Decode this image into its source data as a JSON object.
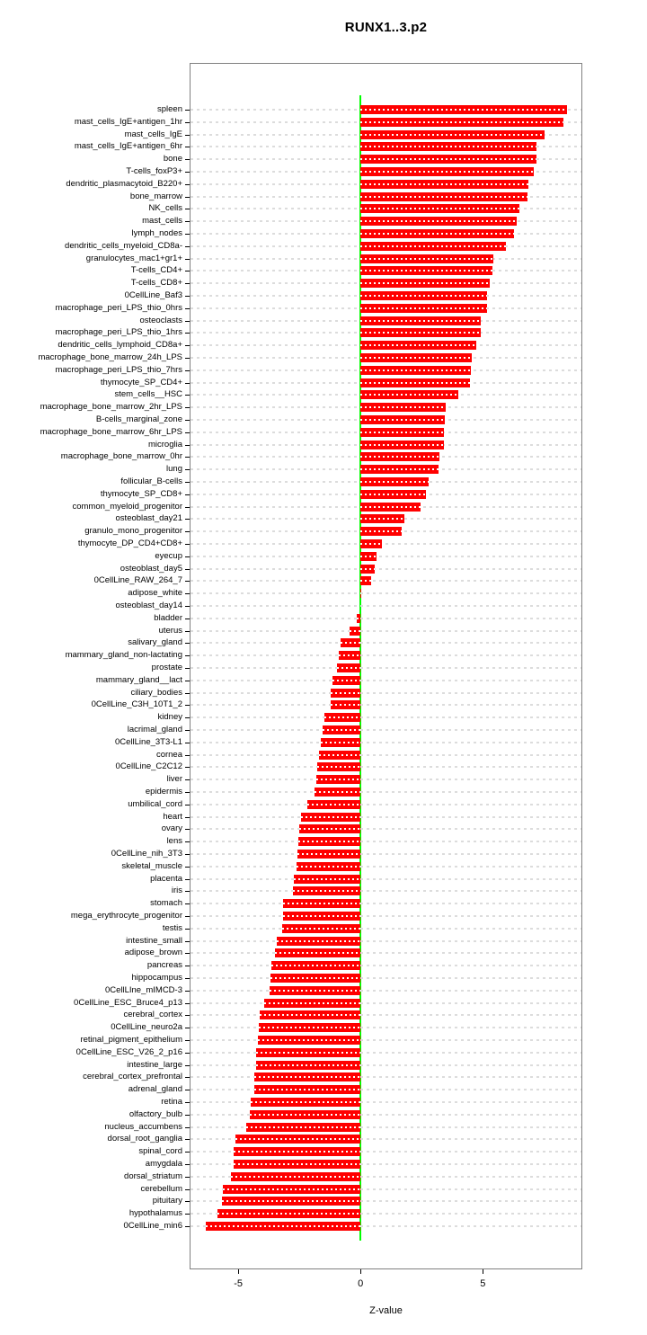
{
  "page": {
    "title": "RUNX1..3.p2"
  },
  "chart_data": {
    "type": "bar",
    "orientation": "horizontal",
    "title": "RUNX1..3.p2",
    "xlabel": "Z-value",
    "ylabel": "",
    "xlim": [
      -6.95,
      9.03
    ],
    "xticks": [
      -5,
      0,
      5
    ],
    "grid": "dashed light-gray horizontal guide per row, full plot width",
    "zero_line": true,
    "legend": "none",
    "bar_color": "#ff0000",
    "bar_dash_color": "#ffffff",
    "zero_line_color": "#00ff00",
    "grid_color": "#dcdcdc",
    "box_color": "#808080",
    "categories": [
      "spleen",
      "mast_cells_IgE+antigen_1hr",
      "mast_cells_IgE",
      "mast_cells_IgE+antigen_6hr",
      "bone",
      "T-cells_foxP3+",
      "dendritic_plasmacytoid_B220+",
      "bone_marrow",
      "NK_cells",
      "mast_cells",
      "lymph_nodes",
      "dendritic_cells_myeloid_CD8a-",
      "granulocytes_mac1+gr1+",
      "T-cells_CD4+",
      "T-cells_CD8+",
      "0CellLine_Baf3",
      "macrophage_peri_LPS_thio_0hrs",
      "osteoclasts",
      "macrophage_peri_LPS_thio_1hrs",
      "dendritic_cells_lymphoid_CD8a+",
      "macrophage_bone_marrow_24h_LPS",
      "macrophage_peri_LPS_thio_7hrs",
      "thymocyte_SP_CD4+",
      "stem_cells__HSC",
      "macrophage_bone_marrow_2hr_LPS",
      "B-cells_marginal_zone",
      "macrophage_bone_marrow_6hr_LPS",
      "microglia",
      "macrophage_bone_marrow_0hr",
      "lung",
      "follicular_B-cells",
      "thymocyte_SP_CD8+",
      "common_myeloid_progenitor",
      "osteoblast_day21",
      "granulo_mono_progenitor",
      "thymocyte_DP_CD4+CD8+",
      "eyecup",
      "osteoblast_day5",
      "0CellLine_RAW_264_7",
      "adipose_white",
      "osteoblast_day14",
      "bladder",
      "uterus",
      "salivary_gland",
      "mammary_gland_non-lactating",
      "prostate",
      "mammary_gland__lact",
      "ciliary_bodies",
      "0CellLine_C3H_10T1_2",
      "kidney",
      "lacrimal_gland",
      "0CellLine_3T3-L1",
      "cornea",
      "0CellLine_C2C12",
      "liver",
      "epidermis",
      "umbilical_cord",
      "heart",
      "ovary",
      "lens",
      "0CellLine_nih_3T3",
      "skeletal_muscle",
      "placenta",
      "iris",
      "stomach",
      "mega_erythrocyte_progenitor",
      "testis",
      "intestine_small",
      "adipose_brown",
      "pancreas",
      "hippocampus",
      "0CellLIne_mIMCD-3",
      "0CellLine_ESC_Bruce4_p13",
      "cerebral_cortex",
      "0CellLine_neuro2a",
      "retinal_pigment_epithelium",
      "0CellLine_ESC_V26_2_p16",
      "intestine_large",
      "cerebral_cortex_prefrontal",
      "adrenal_gland",
      "retina",
      "olfactory_bulb",
      "nucleus_accumbens",
      "dorsal_root_ganglia",
      "spinal_cord",
      "amygdala",
      "dorsal_striatum",
      "cerebellum",
      "pituitary",
      "hypothalamus",
      "0CellLine_min6"
    ],
    "values": [
      8.46,
      8.3,
      7.53,
      7.2,
      7.18,
      7.09,
      6.85,
      6.84,
      6.51,
      6.4,
      6.28,
      5.95,
      5.44,
      5.41,
      5.3,
      5.19,
      5.18,
      4.93,
      4.91,
      4.75,
      4.53,
      4.52,
      4.46,
      4.01,
      3.47,
      3.43,
      3.41,
      3.4,
      3.24,
      3.19,
      2.8,
      2.66,
      2.47,
      1.8,
      1.68,
      0.88,
      0.66,
      0.57,
      0.44,
      0.04,
      0.01,
      -0.16,
      -0.43,
      -0.81,
      -0.9,
      -0.97,
      -1.14,
      -1.22,
      -1.23,
      -1.46,
      -1.56,
      -1.62,
      -1.7,
      -1.78,
      -1.79,
      -1.89,
      -2.19,
      -2.42,
      -2.49,
      -2.53,
      -2.57,
      -2.63,
      -2.71,
      -2.78,
      -3.16,
      -3.18,
      -3.2,
      -3.41,
      -3.51,
      -3.65,
      -3.69,
      -3.71,
      -3.93,
      -4.11,
      -4.17,
      -4.19,
      -4.26,
      -4.28,
      -4.34,
      -4.36,
      -4.5,
      -4.51,
      -4.68,
      -5.13,
      -5.17,
      -5.2,
      -5.29,
      -5.63,
      -5.66,
      -5.84,
      -6.34
    ]
  }
}
